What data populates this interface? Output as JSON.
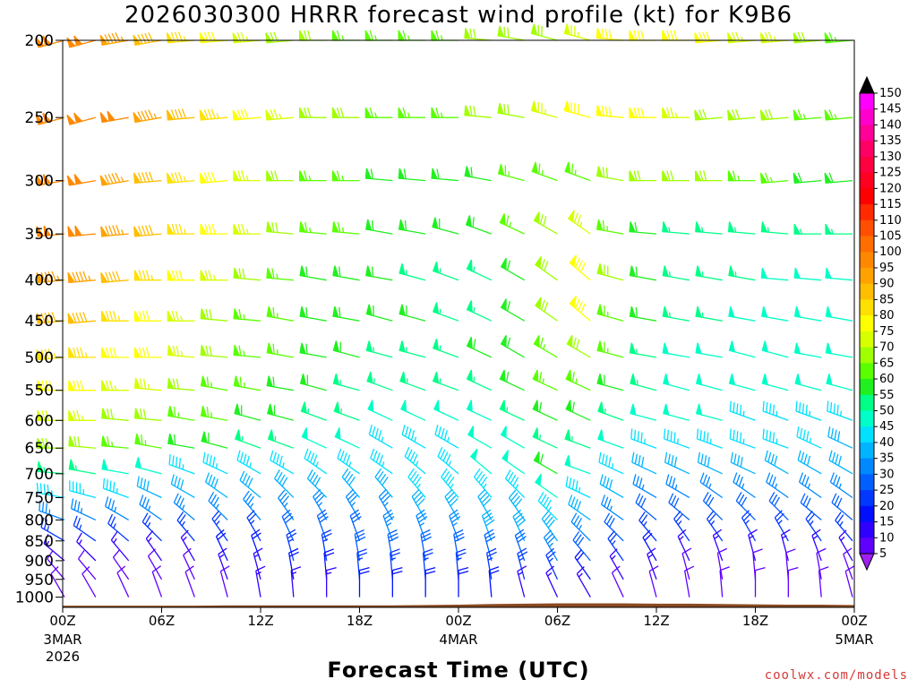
{
  "chart_data": {
    "type": "wind-profile",
    "title": "2026030300 HRRR forecast wind profile (kt) for K9B6",
    "xlabel": "Forecast Time (UTC)",
    "credit": "coolwx.com/models",
    "pressure_levels": [
      200,
      250,
      300,
      350,
      400,
      450,
      500,
      550,
      600,
      650,
      700,
      750,
      800,
      850,
      900,
      950,
      1000
    ],
    "x_ticks": [
      {
        "hour": 0,
        "label": "00Z",
        "sub": "3MAR",
        "sub2": "2026"
      },
      {
        "hour": 6,
        "label": "06Z"
      },
      {
        "hour": 12,
        "label": "12Z"
      },
      {
        "hour": 18,
        "label": "18Z"
      },
      {
        "hour": 24,
        "label": "00Z",
        "sub": "4MAR"
      },
      {
        "hour": 30,
        "label": "06Z"
      },
      {
        "hour": 36,
        "label": "12Z"
      },
      {
        "hour": 42,
        "label": "18Z"
      },
      {
        "hour": 48,
        "label": "00Z",
        "sub": "5MAR"
      }
    ],
    "xlim": [
      0,
      48
    ],
    "ylim": [
      1030,
      200
    ],
    "colorbar": {
      "labels": [
        150,
        145,
        140,
        135,
        130,
        125,
        120,
        115,
        110,
        105,
        100,
        95,
        90,
        85,
        80,
        75,
        70,
        65,
        60,
        55,
        50,
        45,
        40,
        35,
        30,
        25,
        20,
        15,
        10,
        5
      ],
      "colors": [
        "#ff00ff",
        "#ff00cc",
        "#ff0099",
        "#ff0066",
        "#ff0040",
        "#ff0020",
        "#ff0000",
        "#ff2a00",
        "#ff4f00",
        "#ff6e00",
        "#ff8800",
        "#ffa200",
        "#ffbe00",
        "#ffe000",
        "#ffff00",
        "#d8ff00",
        "#a0ff00",
        "#5aff00",
        "#20f020",
        "#00ff88",
        "#00ffc8",
        "#00e0ff",
        "#00b4ff",
        "#0088ff",
        "#0060ff",
        "#0038ff",
        "#0010ff",
        "#3000ff",
        "#6000ff",
        "#9000ff"
      ],
      "top_color": "#000000",
      "bottom_color": "#a020f0"
    },
    "terrain_color": "#8b4a22",
    "terrain_pressure": [
      1025,
      1025,
      1025,
      1025,
      1025,
      1024,
      1024,
      1024,
      1024,
      1024,
      1024,
      1023,
      1022,
      1020,
      1019,
      1018,
      1018,
      1018,
      1019,
      1019,
      1020,
      1021,
      1022,
      1022,
      1023
    ],
    "wind_profile": {
      "hours": [
        0,
        2,
        4,
        6,
        8,
        10,
        12,
        14,
        16,
        18,
        20,
        22,
        24,
        26,
        28,
        30,
        32,
        34,
        36,
        38,
        40,
        42,
        44,
        46,
        48
      ],
      "speed_kt": [
        [
          100,
          100,
          95,
          90,
          85,
          80,
          75,
          70,
          70,
          65,
          65,
          65,
          65,
          70,
          70,
          70,
          75,
          80,
          80,
          80,
          80,
          75,
          75,
          70,
          65
        ],
        [
          100,
          100,
          100,
          95,
          90,
          85,
          80,
          75,
          70,
          70,
          65,
          65,
          65,
          70,
          70,
          75,
          80,
          80,
          80,
          75,
          70,
          70,
          70,
          65,
          65
        ],
        [
          100,
          100,
          95,
          90,
          85,
          80,
          75,
          70,
          65,
          65,
          60,
          60,
          60,
          60,
          65,
          65,
          65,
          70,
          70,
          70,
          70,
          65,
          65,
          60,
          60
        ],
        [
          100,
          100,
          95,
          90,
          85,
          80,
          75,
          70,
          65,
          65,
          60,
          60,
          60,
          60,
          65,
          70,
          75,
          65,
          60,
          55,
          55,
          55,
          55,
          55,
          55
        ],
        [
          95,
          95,
          90,
          85,
          80,
          75,
          70,
          65,
          60,
          60,
          60,
          55,
          55,
          55,
          60,
          70,
          80,
          70,
          60,
          55,
          55,
          55,
          50,
          50,
          50
        ],
        [
          90,
          90,
          85,
          80,
          75,
          70,
          65,
          65,
          60,
          60,
          60,
          60,
          55,
          55,
          60,
          70,
          80,
          65,
          60,
          55,
          55,
          50,
          50,
          50,
          50
        ],
        [
          85,
          85,
          80,
          80,
          75,
          70,
          65,
          65,
          60,
          60,
          55,
          55,
          55,
          60,
          60,
          65,
          70,
          65,
          55,
          50,
          50,
          50,
          50,
          50,
          50
        ],
        [
          80,
          80,
          75,
          75,
          70,
          65,
          65,
          60,
          60,
          55,
          55,
          55,
          55,
          55,
          60,
          65,
          65,
          60,
          55,
          50,
          50,
          50,
          50,
          50,
          50
        ],
        [
          75,
          75,
          70,
          70,
          65,
          65,
          60,
          60,
          55,
          55,
          50,
          50,
          50,
          50,
          55,
          60,
          60,
          55,
          50,
          50,
          50,
          45,
          45,
          45,
          45
        ],
        [
          70,
          70,
          65,
          65,
          60,
          60,
          55,
          55,
          50,
          50,
          45,
          45,
          45,
          50,
          50,
          55,
          55,
          50,
          45,
          45,
          45,
          45,
          45,
          45,
          40
        ],
        [
          55,
          55,
          50,
          50,
          45,
          45,
          45,
          45,
          45,
          45,
          45,
          45,
          45,
          50,
          50,
          60,
          50,
          45,
          40,
          40,
          40,
          40,
          40,
          40,
          40
        ],
        [
          45,
          45,
          45,
          40,
          40,
          40,
          40,
          40,
          40,
          40,
          40,
          45,
          45,
          45,
          45,
          50,
          45,
          40,
          35,
          35,
          35,
          35,
          35,
          35,
          35
        ],
        [
          35,
          35,
          35,
          35,
          35,
          35,
          35,
          35,
          35,
          35,
          35,
          40,
          40,
          40,
          40,
          45,
          40,
          35,
          30,
          30,
          30,
          30,
          30,
          30,
          30
        ],
        [
          25,
          25,
          25,
          25,
          25,
          25,
          25,
          30,
          30,
          30,
          35,
          35,
          35,
          40,
          40,
          40,
          35,
          30,
          25,
          25,
          25,
          25,
          25,
          25,
          25
        ],
        [
          15,
          15,
          15,
          15,
          15,
          20,
          20,
          25,
          25,
          30,
          30,
          30,
          30,
          30,
          30,
          35,
          30,
          25,
          20,
          15,
          15,
          15,
          15,
          15,
          15
        ],
        [
          10,
          10,
          10,
          10,
          10,
          15,
          15,
          20,
          20,
          25,
          25,
          25,
          25,
          25,
          25,
          25,
          20,
          15,
          15,
          10,
          10,
          10,
          10,
          10,
          10
        ],
        [
          10,
          10,
          10,
          10,
          10,
          10,
          15,
          15,
          15,
          20,
          20,
          20,
          20,
          20,
          15,
          15,
          15,
          10,
          10,
          10,
          10,
          10,
          10,
          10,
          10
        ]
      ],
      "direction_deg": [
        [
          255,
          255,
          260,
          260,
          265,
          265,
          265,
          265,
          270,
          270,
          270,
          270,
          270,
          275,
          280,
          285,
          285,
          275,
          270,
          270,
          265,
          265,
          265,
          265,
          265
        ],
        [
          255,
          255,
          260,
          260,
          265,
          265,
          265,
          265,
          270,
          270,
          270,
          270,
          270,
          275,
          280,
          285,
          285,
          275,
          270,
          270,
          265,
          265,
          265,
          265,
          265
        ],
        [
          260,
          260,
          260,
          265,
          265,
          265,
          270,
          270,
          270,
          270,
          275,
          275,
          275,
          280,
          285,
          290,
          290,
          280,
          270,
          270,
          270,
          270,
          265,
          265,
          265
        ],
        [
          265,
          265,
          265,
          265,
          270,
          270,
          270,
          275,
          275,
          275,
          280,
          280,
          285,
          290,
          295,
          300,
          305,
          280,
          275,
          275,
          275,
          275,
          275,
          270,
          270
        ],
        [
          265,
          265,
          265,
          270,
          270,
          270,
          275,
          275,
          280,
          280,
          280,
          285,
          290,
          295,
          300,
          305,
          310,
          285,
          280,
          280,
          280,
          280,
          275,
          275,
          275
        ],
        [
          265,
          265,
          270,
          270,
          270,
          275,
          275,
          280,
          280,
          280,
          285,
          285,
          290,
          295,
          300,
          305,
          310,
          285,
          280,
          280,
          280,
          280,
          280,
          280,
          280
        ],
        [
          265,
          270,
          270,
          270,
          275,
          275,
          275,
          280,
          280,
          285,
          285,
          285,
          290,
          295,
          300,
          300,
          300,
          285,
          280,
          280,
          280,
          285,
          285,
          280,
          280
        ],
        [
          270,
          270,
          270,
          275,
          275,
          280,
          280,
          280,
          285,
          285,
          290,
          290,
          290,
          295,
          295,
          295,
          295,
          285,
          285,
          285,
          285,
          285,
          285,
          285,
          285
        ],
        [
          270,
          270,
          275,
          275,
          280,
          280,
          285,
          285,
          290,
          290,
          295,
          295,
          295,
          295,
          295,
          295,
          295,
          290,
          285,
          285,
          285,
          290,
          290,
          290,
          290
        ],
        [
          270,
          275,
          275,
          280,
          280,
          285,
          290,
          290,
          295,
          295,
          300,
          300,
          300,
          300,
          300,
          295,
          290,
          290,
          290,
          290,
          290,
          290,
          290,
          295,
          295
        ],
        [
          275,
          280,
          280,
          285,
          290,
          295,
          300,
          300,
          305,
          305,
          305,
          310,
          310,
          310,
          305,
          300,
          290,
          295,
          295,
          295,
          295,
          295,
          300,
          300,
          300
        ],
        [
          280,
          285,
          290,
          295,
          300,
          305,
          310,
          315,
          315,
          320,
          320,
          320,
          320,
          320,
          315,
          305,
          295,
          300,
          300,
          300,
          305,
          305,
          305,
          305,
          305
        ],
        [
          290,
          295,
          300,
          305,
          310,
          315,
          320,
          325,
          330,
          330,
          330,
          330,
          330,
          330,
          325,
          315,
          305,
          305,
          310,
          310,
          315,
          315,
          315,
          310,
          310
        ],
        [
          300,
          305,
          310,
          315,
          320,
          325,
          330,
          335,
          340,
          340,
          340,
          340,
          340,
          340,
          335,
          325,
          315,
          315,
          320,
          325,
          325,
          330,
          330,
          325,
          320
        ],
        [
          310,
          315,
          320,
          325,
          330,
          335,
          340,
          345,
          350,
          350,
          350,
          350,
          350,
          345,
          340,
          330,
          320,
          325,
          330,
          335,
          340,
          345,
          345,
          340,
          330
        ],
        [
          320,
          320,
          325,
          330,
          335,
          340,
          345,
          350,
          355,
          355,
          355,
          355,
          355,
          350,
          345,
          335,
          325,
          330,
          340,
          345,
          350,
          355,
          355,
          350,
          340
        ],
        [
          330,
          330,
          335,
          340,
          340,
          345,
          350,
          355,
          360,
          360,
          360,
          360,
          360,
          355,
          345,
          335,
          330,
          335,
          345,
          350,
          355,
          360,
          360,
          355,
          345
        ]
      ]
    }
  }
}
